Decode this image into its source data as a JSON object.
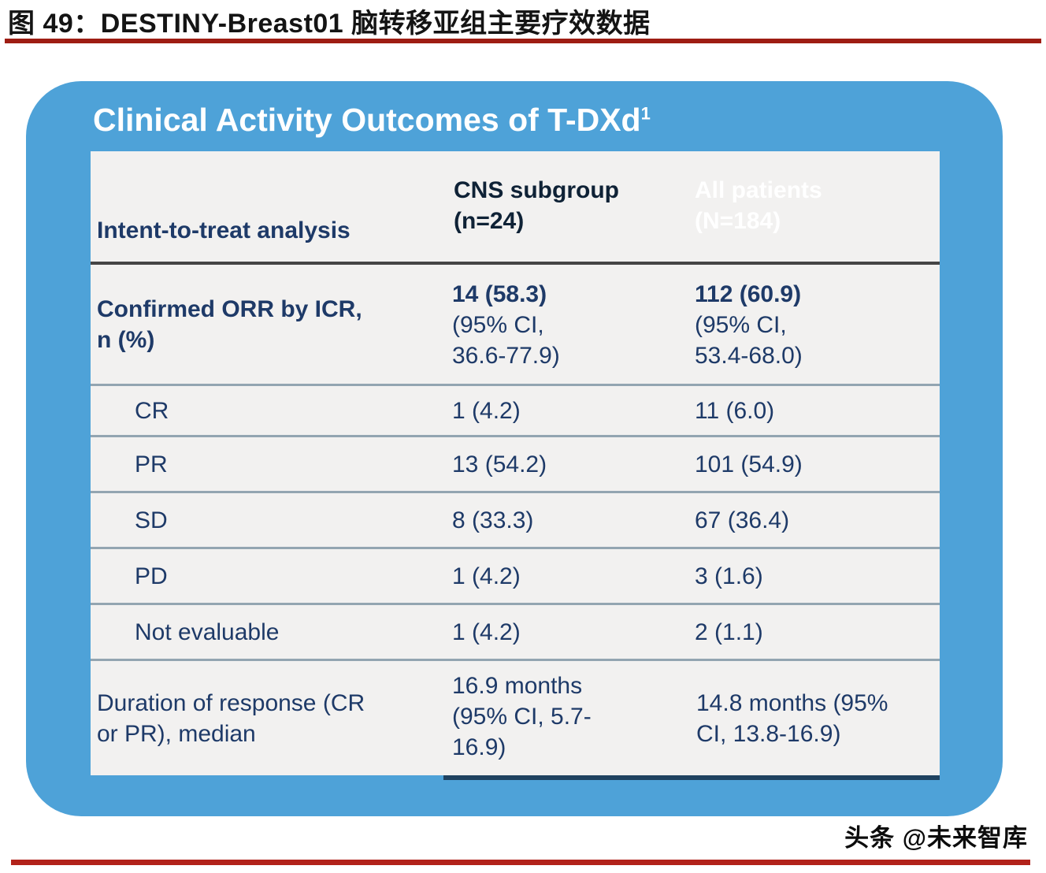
{
  "page": {
    "figure_caption": "图 49：DESTINY-Breast01 脑转移亚组主要疗效数据",
    "watermark": "头条 @未来智库"
  },
  "card": {
    "title": "Clinical Activity Outcomes of T-DXd",
    "title_footnote": "1"
  },
  "table": {
    "columns": {
      "analysis": "Intent-to-treat analysis",
      "cns": "CNS subgroup\n(n=24)",
      "all": "All patients\n(N=184)"
    },
    "rows": [
      {
        "label": "Confirmed ORR by ICR,\nn (%)",
        "cns_value": "14 (58.3)",
        "cns_ci": "(95% CI,\n36.6-77.9)",
        "all_value": "112 (60.9)",
        "all_ci": "(95% CI,\n53.4-68.0)"
      },
      {
        "label": "CR",
        "cns": "1 (4.2)",
        "all": "11 (6.0)"
      },
      {
        "label": "PR",
        "cns": "13 (54.2)",
        "all": "101 (54.9)"
      },
      {
        "label": "SD",
        "cns": "8 (33.3)",
        "all": "67 (36.4)"
      },
      {
        "label": "PD",
        "cns": "1 (4.2)",
        "all": "3 (1.6)"
      },
      {
        "label": "Not evaluable",
        "cns": "1 (4.2)",
        "all": "2 (1.1)"
      },
      {
        "label": "Duration of response (CR\nor PR), median",
        "cns": "16.9 months\n(95% CI, 5.7-\n16.9)",
        "all": "14.8 months (95%\nCI, 13.8-16.9)"
      }
    ]
  },
  "colors": {
    "card_blue": "#4ea2d8",
    "header_yellow": "#c1d01d",
    "header_navy": "#134a7d",
    "text_navy": "#1e3a68",
    "row_background": "#f2f1f0",
    "rule_red_top": "#9e1d13",
    "rule_red_bottom": "#b2231b"
  }
}
